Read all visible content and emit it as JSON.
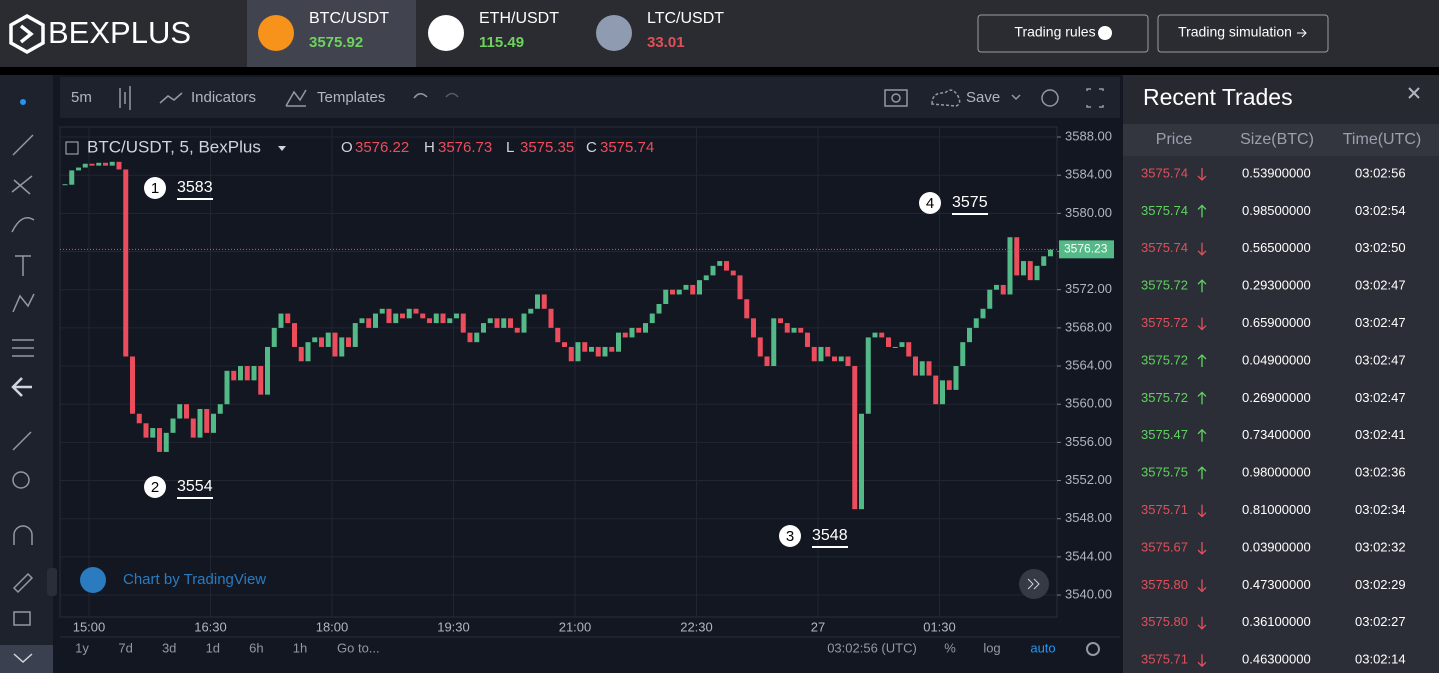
{
  "header": {
    "logo": "BEXPLUS",
    "tickers": [
      {
        "symbol": "BTC/USDT",
        "price": "3575.92",
        "color": "#6fd25f",
        "icon": "#f7931a"
      },
      {
        "symbol": "ETH/USDT",
        "price": "115.49",
        "color": "#6fd25f",
        "icon": "#ffffff"
      },
      {
        "symbol": "LTC/USDT",
        "price": "33.01",
        "color": "#e0505a",
        "icon": "#8f9bb0"
      }
    ],
    "buttons": [
      "Trading rules",
      "Trading simulation"
    ]
  },
  "toolbar": {
    "interval": "5m",
    "items": [
      "Indicators",
      "Templates"
    ],
    "save": "Save"
  },
  "chart": {
    "type": "candlestick",
    "legend": {
      "symbol": "BTC/USDT, 5, BexPlus",
      "ohlc": [
        {
          "key": "O",
          "value": "3576.22"
        },
        {
          "key": "H",
          "value": "3576.73"
        },
        {
          "key": "L",
          "value": "3575.35"
        },
        {
          "key": "C",
          "value": "3575.74"
        }
      ]
    },
    "up_color": "#53b987",
    "down_color": "#eb4d5c",
    "close": [
      3583,
      3584.5,
      3584.8,
      3585.2,
      3585,
      3585.3,
      3585,
      3585.4,
      3584.6,
      3565,
      3559,
      3558,
      3556.5,
      3557.5,
      3555,
      3557,
      3558.5,
      3560,
      3558.5,
      3556.5,
      3559.5,
      3557,
      3559,
      3560,
      3563.5,
      3562.5,
      3564,
      3562.5,
      3564,
      3561,
      3566,
      3568,
      3569.5,
      3568.5,
      3566,
      3564.5,
      3566.5,
      3567,
      3566,
      3567.5,
      3565,
      3567,
      3566,
      3568.5,
      3569,
      3568,
      3569.5,
      3570,
      3568.5,
      3569.5,
      3569,
      3570,
      3569.5,
      3569,
      3568.5,
      3569.5,
      3568.5,
      3569,
      3569.5,
      3567.5,
      3566.5,
      3567.5,
      3568.5,
      3569,
      3568,
      3569,
      3568,
      3567.5,
      3569.5,
      3570,
      3571.5,
      3570,
      3568,
      3566.5,
      3566,
      3564.5,
      3566.5,
      3565.5,
      3566,
      3565,
      3566,
      3565.5,
      3567.5,
      3567,
      3568,
      3567.5,
      3568.5,
      3569.5,
      3570.5,
      3572,
      3571.5,
      3572,
      3572.5,
      3571.5,
      3573,
      3573.5,
      3574.5,
      3575,
      3574,
      3573.5,
      3571,
      3569,
      3567,
      3565,
      3564,
      3569,
      3568.5,
      3567.5,
      3568,
      3567.5,
      3566,
      3564.5,
      3566,
      3565,
      3564.5,
      3565,
      3564,
      3549,
      3559,
      3567,
      3567.5,
      3567,
      3566,
      3566,
      3566.5,
      3565,
      3563,
      3564.5,
      3563,
      3560,
      3562.5,
      3561.5,
      3564,
      3566.5,
      3568,
      3569,
      3570,
      3572,
      3572.5,
      3571.5,
      3577.5,
      3573.5,
      3575,
      3573,
      3574.5,
      3575.5,
      3576.2
    ],
    "ylim": [
      3537.7,
      3589.05
    ],
    "yticks": [
      {
        "value": 3588,
        "label": "3588.00"
      },
      {
        "value": 3584,
        "label": "3584.00"
      },
      {
        "value": 3580,
        "label": "3580.00"
      },
      {
        "value": 3576,
        "label": "3576.00"
      },
      {
        "value": 3572,
        "label": "3572.00"
      },
      {
        "value": 3568,
        "label": "3568.00"
      },
      {
        "value": 3564,
        "label": "3564.00"
      },
      {
        "value": 3560,
        "label": "3560.00"
      },
      {
        "value": 3556,
        "label": "3556.00"
      },
      {
        "value": 3552,
        "label": "3552.00"
      },
      {
        "value": 3548,
        "label": "3548.00"
      },
      {
        "value": 3544,
        "label": "3544.00"
      },
      {
        "value": 3540,
        "label": "3540.00"
      }
    ],
    "xticks": [
      "15:00",
      "16:30",
      "18:00",
      "19:30",
      "21:00",
      "22:30",
      "27",
      "01:30"
    ],
    "last_price": 3576.23,
    "annotations": [
      {
        "number": "1",
        "label": "3583"
      },
      {
        "number": "2",
        "label": "3554"
      },
      {
        "number": "3",
        "label": "3548"
      },
      {
        "number": "4",
        "label": "3575"
      }
    ],
    "watermark": "Chart by TradingView"
  },
  "bottom_bar": {
    "ranges": [
      "1y",
      "7d",
      "3d",
      "1d",
      "6h",
      "1h"
    ],
    "goto": "Go to...",
    "clock": "03:02:56 (UTC)",
    "options": [
      "%",
      "log",
      "auto"
    ]
  },
  "trades": {
    "title": "Recent Trades",
    "columns": [
      "Price",
      "Size(BTC)",
      "Time(UTC)"
    ],
    "rows": [
      {
        "price": "3575.74",
        "side": "down",
        "size": "0.53900000",
        "time": "03:02:56"
      },
      {
        "price": "3575.74",
        "side": "up",
        "size": "0.98500000",
        "time": "03:02:54"
      },
      {
        "price": "3575.74",
        "side": "down",
        "size": "0.56500000",
        "time": "03:02:50"
      },
      {
        "price": "3575.72",
        "side": "up",
        "size": "0.29300000",
        "time": "03:02:47"
      },
      {
        "price": "3575.72",
        "side": "down",
        "size": "0.65900000",
        "time": "03:02:47"
      },
      {
        "price": "3575.72",
        "side": "up",
        "size": "0.04900000",
        "time": "03:02:47"
      },
      {
        "price": "3575.72",
        "side": "up",
        "size": "0.26900000",
        "time": "03:02:47"
      },
      {
        "price": "3575.47",
        "side": "up",
        "size": "0.73400000",
        "time": "03:02:41"
      },
      {
        "price": "3575.75",
        "side": "up",
        "size": "0.98000000",
        "time": "03:02:36"
      },
      {
        "price": "3575.71",
        "side": "down",
        "size": "0.81000000",
        "time": "03:02:34"
      },
      {
        "price": "3575.67",
        "side": "down",
        "size": "0.03900000",
        "time": "03:02:32"
      },
      {
        "price": "3575.80",
        "side": "down",
        "size": "0.47300000",
        "time": "03:02:29"
      },
      {
        "price": "3575.80",
        "side": "down",
        "size": "0.36100000",
        "time": "03:02:27"
      },
      {
        "price": "3575.71",
        "side": "down",
        "size": "0.46300000",
        "time": "03:02:14"
      }
    ]
  }
}
